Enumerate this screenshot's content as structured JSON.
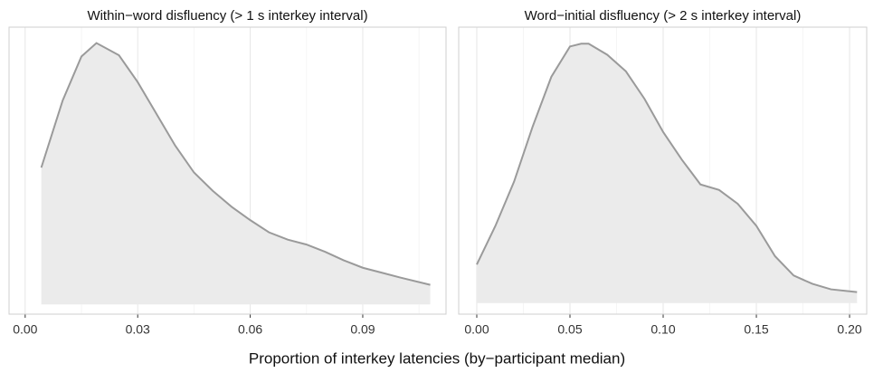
{
  "chart_data": [
    {
      "type": "density",
      "title": "Within−word disfluency (> 1 s interkey interval)",
      "x": [
        0.0043,
        0.01,
        0.015,
        0.019,
        0.025,
        0.03,
        0.035,
        0.04,
        0.045,
        0.05,
        0.055,
        0.06,
        0.065,
        0.07,
        0.075,
        0.08,
        0.085,
        0.09,
        0.095,
        0.1,
        0.108
      ],
      "values": [
        11.2,
        16.7,
        20.3,
        21.4,
        20.4,
        18.2,
        15.6,
        13.0,
        10.8,
        9.3,
        8.0,
        6.9,
        5.9,
        5.3,
        4.9,
        4.3,
        3.6,
        3.0,
        2.6,
        2.2,
        1.6
      ],
      "xlim": [
        -0.0043,
        0.1122
      ],
      "ylim": [
        -0.8,
        22.7
      ],
      "xticks": [
        {
          "value": 0,
          "label": "0.00"
        },
        0.03,
        0.06,
        0.09
      ],
      "minor_xticks": [
        0.015,
        0.045,
        0.075,
        0.105
      ],
      "line_color": "#9a9a9a",
      "fill_color": "#ebebeb",
      "grid": true
    },
    {
      "type": "density",
      "title": "Word−initial disfluency (> 2 s interkey interval)",
      "x": [
        0.0,
        0.01,
        0.02,
        0.03,
        0.04,
        0.05,
        0.056,
        0.06,
        0.07,
        0.08,
        0.09,
        0.1,
        0.11,
        0.12,
        0.13,
        0.14,
        0.15,
        0.16,
        0.17,
        0.18,
        0.19,
        0.204
      ],
      "values": [
        1.4,
        2.8,
        4.4,
        6.4,
        8.2,
        9.3,
        9.4,
        9.4,
        9.0,
        8.4,
        7.4,
        6.2,
        5.2,
        4.3,
        4.1,
        3.6,
        2.8,
        1.7,
        1.0,
        0.7,
        0.5,
        0.4
      ],
      "xlim": [
        -0.0097,
        0.2092
      ],
      "ylim": [
        -0.4,
        10.0
      ],
      "xticks": [
        {
          "value": 0,
          "label": "0.00"
        },
        0.05,
        {
          "value": 0.1,
          "label": "0.10"
        },
        0.15,
        {
          "value": 0.2,
          "label": "0.20"
        }
      ],
      "minor_xticks": [
        0.025,
        0.075,
        0.125,
        0.175
      ],
      "line_color": "#9a9a9a",
      "fill_color": "#ebebeb",
      "grid": true
    }
  ],
  "x_label": "Proportion of interkey latencies (by−participant median)"
}
